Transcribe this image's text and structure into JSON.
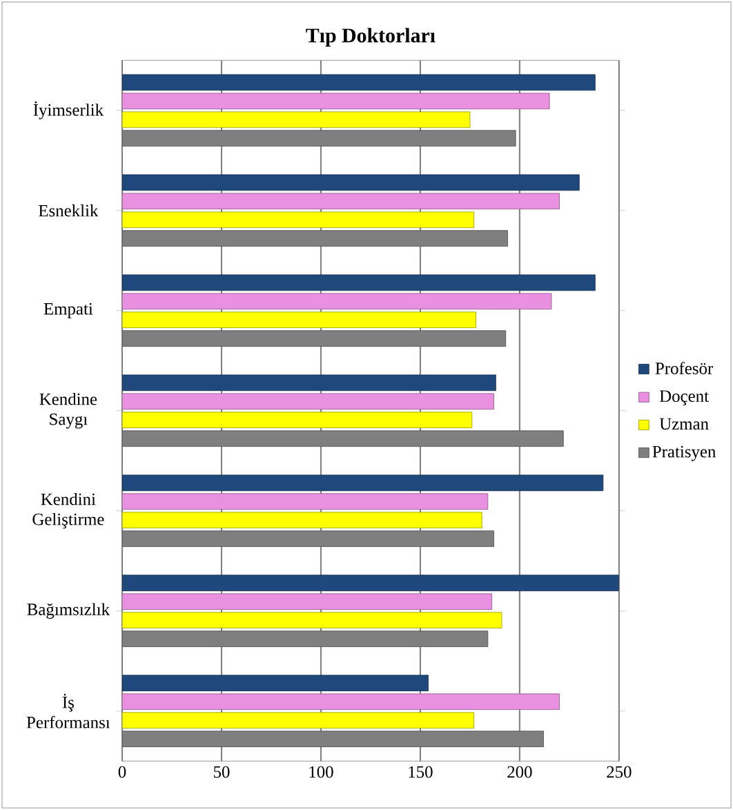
{
  "chart_data": {
    "type": "bar",
    "orientation": "horizontal",
    "title": "Tıp Doktorları",
    "categories": [
      "İyimserlik",
      "Esneklik",
      "Empati",
      "Kendine Saygı",
      "Kendini Geliştirme",
      "Bağımsızlık",
      "İş Performansı"
    ],
    "series": [
      {
        "name": "Profesör",
        "color": "#1f497d",
        "values": [
          238,
          230,
          238,
          188,
          242,
          250,
          154
        ]
      },
      {
        "name": "Doçent",
        "color": "#e991e0",
        "values": [
          215,
          220,
          216,
          187,
          184,
          186,
          220
        ]
      },
      {
        "name": "Uzman",
        "color": "#ffff00",
        "values": [
          175,
          177,
          178,
          176,
          181,
          191,
          177
        ]
      },
      {
        "name": "Pratisyen",
        "color": "#7f7f7f",
        "values": [
          198,
          194,
          193,
          222,
          187,
          184,
          212
        ]
      }
    ],
    "xlim": [
      0,
      250
    ],
    "xticks": [
      0,
      50,
      100,
      150,
      200,
      250
    ],
    "grid": "x",
    "legend": "right"
  }
}
